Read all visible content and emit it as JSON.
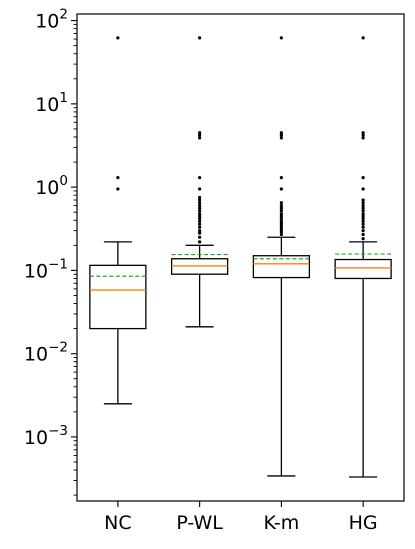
{
  "chart_data": {
    "type": "box",
    "title": "",
    "xlabel": "",
    "ylabel": "",
    "yscale": "log",
    "ylim": [
      0.00017,
      120
    ],
    "y_ticks": [
      {
        "value": 0.001,
        "base": "10",
        "exp": "−3"
      },
      {
        "value": 0.01,
        "base": "10",
        "exp": "−2"
      },
      {
        "value": 0.1,
        "base": "10",
        "exp": "−1"
      },
      {
        "value": 1,
        "base": "10",
        "exp": "0"
      },
      {
        "value": 10,
        "base": "10",
        "exp": "1"
      },
      {
        "value": 100,
        "base": "10",
        "exp": "2"
      }
    ],
    "categories": [
      "NC",
      "P-WL",
      "K-m",
      "HG"
    ],
    "boxes": [
      {
        "label": "NC",
        "whisker_low": 0.0025,
        "q1": 0.02,
        "median": 0.058,
        "mean": 0.085,
        "q3": 0.115,
        "whisker_high": 0.22,
        "fliers": [
          0.95,
          1.3,
          62
        ]
      },
      {
        "label": "P-WL",
        "whisker_low": 0.021,
        "q1": 0.09,
        "median": 0.113,
        "mean": 0.155,
        "q3": 0.138,
        "whisker_high": 0.2,
        "fliers": [
          0.22,
          0.25,
          0.28,
          0.3,
          0.33,
          0.36,
          0.39,
          0.42,
          0.45,
          0.48,
          0.52,
          0.56,
          0.6,
          0.65,
          0.7,
          0.75,
          0.95,
          1.3,
          3.9,
          4.2,
          4.5,
          62
        ]
      },
      {
        "label": "K-m",
        "whisker_low": 0.00034,
        "q1": 0.082,
        "median": 0.12,
        "mean": 0.138,
        "q3": 0.15,
        "whisker_high": 0.25,
        "fliers": [
          0.27,
          0.29,
          0.31,
          0.33,
          0.35,
          0.37,
          0.39,
          0.42,
          0.45,
          0.48,
          0.52,
          0.56,
          0.6,
          0.65,
          0.95,
          1.3,
          3.9,
          4.2,
          4.5,
          62
        ]
      },
      {
        "label": "HG",
        "whisker_low": 0.00033,
        "q1": 0.08,
        "median": 0.107,
        "mean": 0.157,
        "q3": 0.135,
        "whisker_high": 0.22,
        "fliers": [
          0.24,
          0.27,
          0.3,
          0.33,
          0.36,
          0.39,
          0.42,
          0.45,
          0.48,
          0.52,
          0.56,
          0.6,
          0.65,
          0.7,
          0.95,
          1.3,
          3.9,
          4.2,
          4.5,
          62
        ]
      }
    ],
    "colors": {
      "box": "#000000",
      "median": "#ff7f0e",
      "mean": "#2ca02c",
      "flier": "#000000",
      "axes": "#000000"
    },
    "grid": false,
    "legend": "none"
  }
}
